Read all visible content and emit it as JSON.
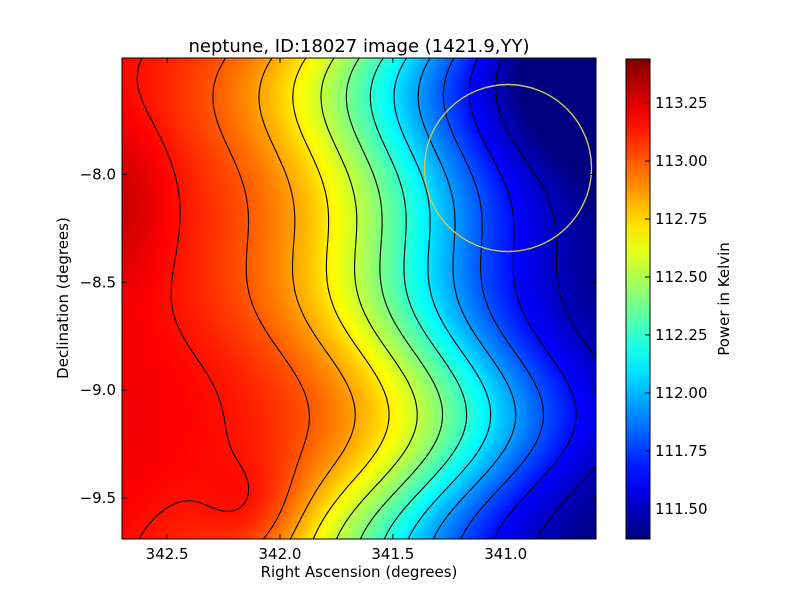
{
  "chart_data": {
    "type": "heatmap",
    "title": "neptune, ID:18027 image (1421.9,YY)",
    "xlabel": "Right Ascension (degrees)",
    "ylabel": "Declination (degrees)",
    "xlim": [
      342.7,
      340.6
    ],
    "ylim": [
      -9.69,
      -7.46
    ],
    "x_ticks": [
      342.5,
      342.0,
      341.5,
      341.0
    ],
    "x_tick_labels": [
      "342.5",
      "342.0",
      "341.5",
      "341.0"
    ],
    "y_ticks": [
      -8.0,
      -8.5,
      -9.0,
      -9.5
    ],
    "y_tick_labels": [
      "−8.0",
      "−8.5",
      "−9.0",
      "−9.5"
    ],
    "colorbar": {
      "label": "Power in Kelvin",
      "range": [
        111.37,
        113.44
      ],
      "ticks": [
        111.5,
        111.75,
        112.0,
        112.25,
        112.5,
        112.75,
        113.0,
        113.25
      ],
      "tick_labels": [
        "111.50",
        "111.75",
        "112.00",
        "112.25",
        "112.50",
        "112.75",
        "113.00",
        "113.25"
      ],
      "colormap": "jet"
    },
    "contour_levels": [
      111.5,
      111.65,
      111.8,
      111.95,
      112.1,
      112.25,
      112.4,
      112.55,
      112.7,
      112.85,
      113.0,
      113.15,
      113.3
    ],
    "contour_color": "#000000",
    "annotation_circle": {
      "center_ra": 340.99,
      "center_dec": -7.97,
      "radius_deg": 0.37,
      "color": "#c8c85a"
    },
    "field_description": "Power increases from the upper-right (minimum ~111.4 K) toward the left edge (maximum ~113.4 K), with contour bands running roughly top-to-bottom and bending."
  }
}
